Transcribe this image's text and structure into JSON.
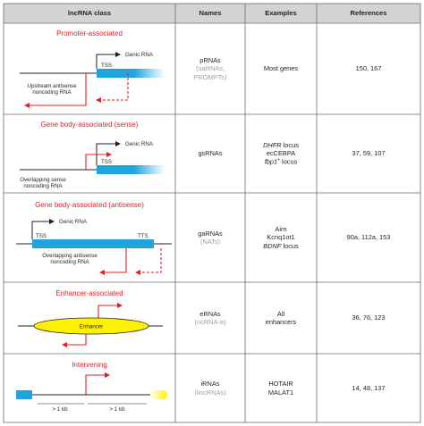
{
  "header": {
    "class": "lncRNA class",
    "names": "Names",
    "examples": "Examples",
    "references": "References"
  },
  "rows": [
    {
      "title": "Promoter-associated",
      "labels": {
        "tss": "TSS",
        "genic": "Genic RNA",
        "noncoding_1": "Upstream antisense",
        "noncoding_2": "noncoding RNA"
      },
      "name_main": "pRNAs",
      "name_alt_1": "(uaRNAs,",
      "name_alt_2": "PROMPTs)",
      "example_1": "Most genes",
      "references": "150, 167"
    },
    {
      "title": "Gene body-associated (sense)",
      "labels": {
        "tss": "TSS",
        "genic": "Genic RNA",
        "noncoding_1": "Overlapping sense",
        "noncoding_2": "noncoding RNA"
      },
      "name_main": "gsRNAs",
      "example_1_italic": "DHFR",
      "example_1_rest": " locus",
      "example_2": "ecCEBPA",
      "example_3_italic": "fbp1",
      "example_3_sup": "+",
      "example_3_rest": " locus",
      "references": "37, 59, 107"
    },
    {
      "title": "Gene body-associated (antisense)",
      "labels": {
        "tss": "TSS",
        "tts": "TTS",
        "genic": "Genic RNA",
        "noncoding_1": "Overlapping antisense",
        "noncoding_2": "noncoding RNA"
      },
      "name_main": "gaRNAs",
      "name_alt_1": "(NATs)",
      "example_1": "Airn",
      "example_2": "Kcnq1ot1",
      "example_3_italic": "BDNF",
      "example_3_rest": " locus",
      "references": "90a, 112a, 153"
    },
    {
      "title": "Enhancer-associated",
      "labels": {
        "enhancer": "Enhancer"
      },
      "name_main": "eRNAs",
      "name_alt_1": "(ncRNA-a)",
      "example_1": "All",
      "example_2": "enhancers",
      "references": "36, 76, 123"
    },
    {
      "title": "Intervening",
      "labels": {
        "dist_1": "> 1 kb",
        "dist_2": "> 1 kb"
      },
      "name_main": "iRNAs",
      "name_alt_1": "(lincRNAs)",
      "example_1": "HOTAIR",
      "example_2": "MALAT1",
      "references": "14, 48, 137"
    }
  ],
  "colors": {
    "red": "#e41e26",
    "blue": "#1fa4de",
    "yellow": "#fff200",
    "header_bg": "#d1d3d4",
    "border": "#6d6e71"
  }
}
